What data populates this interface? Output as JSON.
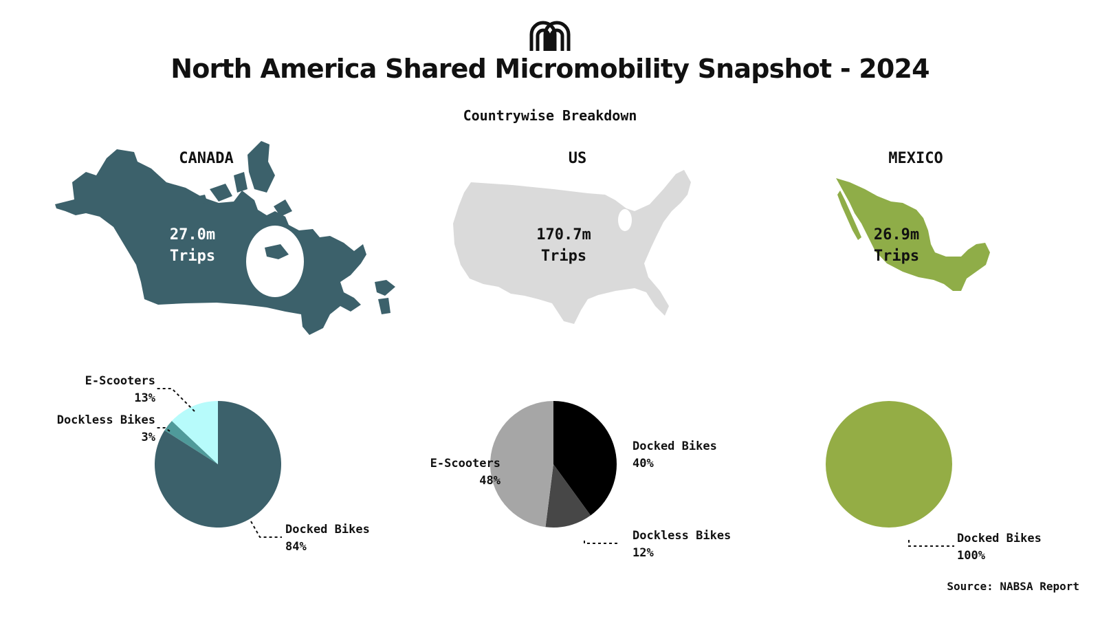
{
  "header": {
    "logo_icon": "micromobility-m-logo-icon",
    "title": "North America Shared Micromobility Snapshot - 2024",
    "subtitle": "Countrywise Breakdown"
  },
  "source": "Source: NABSA Report",
  "countries": [
    {
      "name": "CANADA",
      "trips_value": "27.0m",
      "trips_unit": "Trips",
      "map_icon": "canada-map-icon",
      "map_color": "#3c616b",
      "trips_text_color": "#ffffff"
    },
    {
      "name": "US",
      "trips_value": "170.7m",
      "trips_unit": "Trips",
      "map_icon": "us-map-icon",
      "map_color": "#dadada",
      "trips_text_color": "#111111"
    },
    {
      "name": "MEXICO",
      "trips_value": "26.9m",
      "trips_unit": "Trips",
      "map_icon": "mexico-map-icon",
      "map_color": "#8fad48",
      "trips_text_color": "#111111"
    }
  ],
  "chart_data": [
    {
      "type": "pie",
      "title": "CANADA",
      "slices": [
        {
          "label": "Docked Bikes",
          "value": 84,
          "display": "84%",
          "color": "#3c616b"
        },
        {
          "label": "Dockless Bikes",
          "value": 3,
          "display": "3%",
          "color": "#4f9a9a"
        },
        {
          "label": "E-Scooters",
          "value": 13,
          "display": "13%",
          "color": "#b7fbfb"
        }
      ]
    },
    {
      "type": "pie",
      "title": "US",
      "slices": [
        {
          "label": "Docked Bikes",
          "value": 40,
          "display": "40%",
          "color": "#000000"
        },
        {
          "label": "Dockless Bikes",
          "value": 12,
          "display": "12%",
          "color": "#474747"
        },
        {
          "label": "E-Scooters",
          "value": 48,
          "display": "48%",
          "color": "#a6a6a6"
        }
      ]
    },
    {
      "type": "pie",
      "title": "MEXICO",
      "slices": [
        {
          "label": "Docked Bikes",
          "value": 100,
          "display": "100%",
          "color": "#94ad45"
        }
      ]
    }
  ]
}
